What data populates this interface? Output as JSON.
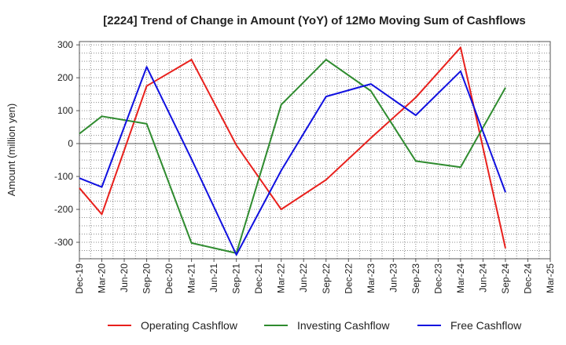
{
  "chart_data": {
    "type": "line",
    "title": "[2224]  Trend of Change in Amount (YoY) of 12Mo Moving Sum of Cashflows",
    "xlabel": "",
    "ylabel": "Amount (million yen)",
    "categories": [
      "Dec-19",
      "Mar-20",
      "Jun-20",
      "Sep-20",
      "Dec-20",
      "Mar-21",
      "Jun-21",
      "Sep-21",
      "Dec-21",
      "Mar-22",
      "Jun-22",
      "Sep-22",
      "Dec-22",
      "Mar-23",
      "Jun-23",
      "Sep-23",
      "Dec-23",
      "Mar-24",
      "Jun-24",
      "Sep-24",
      "Dec-24",
      "Mar-25"
    ],
    "ylim": [
      -350,
      310
    ],
    "yticks": [
      -300,
      -200,
      -100,
      0,
      100,
      200,
      300
    ],
    "ytick_labels": [
      "-300",
      "-200",
      "-100",
      "0",
      "100",
      "200",
      "300"
    ],
    "grid": true,
    "legend_position": "bottom",
    "series": [
      {
        "name": "Operating Cashflow",
        "color": "#e8201c",
        "values": [
          -135,
          -215,
          null,
          175,
          null,
          255,
          null,
          -5,
          null,
          -200,
          null,
          -110,
          null,
          17,
          null,
          140,
          null,
          292,
          null,
          -318,
          null,
          null
        ]
      },
      {
        "name": "Investing Cashflow",
        "color": "#2e8b2e",
        "values": [
          30,
          83,
          null,
          60,
          null,
          -302,
          null,
          -333,
          null,
          118,
          null,
          255,
          null,
          160,
          null,
          -53,
          null,
          -72,
          null,
          170,
          null,
          null
        ]
      },
      {
        "name": "Free Cashflow",
        "color": "#1010e0",
        "values": [
          -105,
          -132,
          null,
          233,
          null,
          -47,
          null,
          -338,
          null,
          -82,
          null,
          143,
          null,
          181,
          null,
          86,
          null,
          220,
          null,
          -148,
          null,
          null
        ]
      }
    ]
  }
}
